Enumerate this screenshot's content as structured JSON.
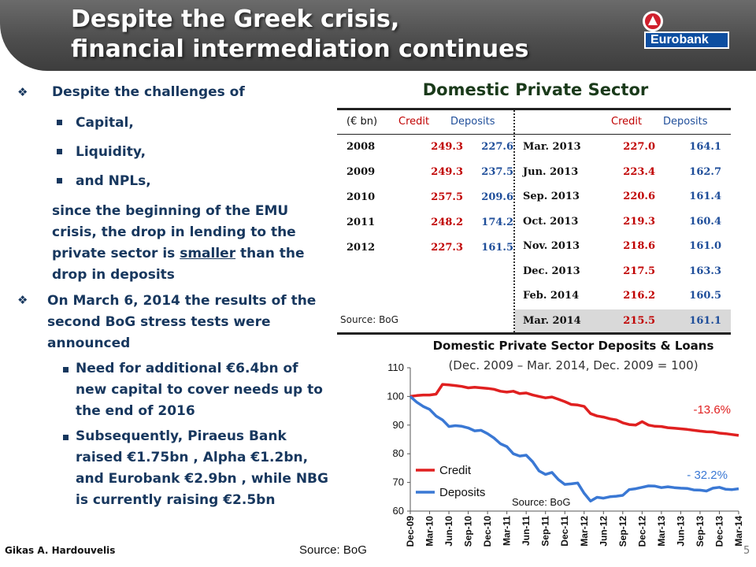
{
  "header": {
    "title_line1": "Despite the Greek crisis,",
    "title_line2": "financial intermediation continues",
    "logo_text": "Eurobank"
  },
  "left": {
    "bullet1": "Despite the challenges of",
    "sub1": "Capital,",
    "sub2": "Liquidity,",
    "sub3": "and NPLs,",
    "para_pre": "since the beginning of the EMU crisis, the drop in lending to the private sector is",
    "para_u": "smaller",
    "para_post": "than the drop in deposits",
    "bullet2": "On March 6, 2014 the results of the second BoG stress tests were announced",
    "sub4": "Need for additional  €6.4bn of new capital to cover needs up to the end of 2016",
    "sub5": "Subsequently,  Piraeus Bank raised €1.75bn , Alpha €1.2bn, and Eurobank  €2.9bn , while NBG is currently raising €2.5bn"
  },
  "table": {
    "title": "Domestic Private Sector",
    "headers": [
      "(€ bn)",
      "Credit",
      "Deposits",
      "Credit",
      "Deposits"
    ],
    "left_rows": [
      {
        "label": "2008",
        "credit": "249.3",
        "deposits": "227.6"
      },
      {
        "label": "2009",
        "credit": "249.3",
        "deposits": "237.5"
      },
      {
        "label": "2010",
        "credit": "257.5",
        "deposits": "209.6"
      },
      {
        "label": "2011",
        "credit": "248.2",
        "deposits": "174.2"
      },
      {
        "label": "2012",
        "credit": "227.3",
        "deposits": "161.5"
      }
    ],
    "right_rows": [
      {
        "label": "Mar. 2013",
        "credit": "227.0",
        "deposits": "164.1"
      },
      {
        "label": "Jun. 2013",
        "credit": "223.4",
        "deposits": "162.7"
      },
      {
        "label": "Sep. 2013",
        "credit": "220.6",
        "deposits": "161.4"
      },
      {
        "label": "Oct. 2013",
        "credit": "219.3",
        "deposits": "160.4"
      },
      {
        "label": "Nov. 2013",
        "credit": "218.6",
        "deposits": "161.0"
      },
      {
        "label": "Dec. 2013",
        "credit": "217.5",
        "deposits": "163.3"
      },
      {
        "label": "Feb. 2014",
        "credit": "216.2",
        "deposits": "160.5"
      },
      {
        "label": "Mar. 2014",
        "credit": "215.5",
        "deposits": "161.1"
      }
    ],
    "source": "Source: BoG"
  },
  "chart_data": {
    "type": "line",
    "title": "Domestic Private Sector Deposits  & Loans",
    "subtitle": "(Dec. 2009 – Mar. 2014, Dec. 2009 = 100)",
    "ylim": [
      60,
      110
    ],
    "yticks": [
      60,
      70,
      80,
      90,
      100,
      110
    ],
    "xticks": [
      "Dec-09",
      "Mar-10",
      "Jun-10",
      "Sep-10",
      "Dec-10",
      "Mar-11",
      "Jun-11",
      "Sep-11",
      "Dec-11",
      "Mar-12",
      "Jun-12",
      "Sep-12",
      "Dec-12",
      "Mar-13",
      "Jun-13",
      "Sep-13",
      "Dec-13",
      "Mar-14"
    ],
    "n_points": 52,
    "series": [
      {
        "name": "Credit",
        "color": "#e02020",
        "values": [
          100,
          100.3,
          100.5,
          100.5,
          100.8,
          104.2,
          104,
          103.8,
          103.5,
          103,
          103.2,
          103,
          102.8,
          102.5,
          101.8,
          101.5,
          101.8,
          101,
          101.2,
          100.5,
          100,
          99.5,
          99.8,
          99,
          98.2,
          97.2,
          97,
          96.5,
          94,
          93.2,
          92.8,
          92.2,
          91.8,
          90.8,
          90.2,
          90,
          91.2,
          90,
          89.6,
          89.5,
          89.1,
          88.9,
          88.7,
          88.5,
          88.2,
          87.9,
          87.7,
          87.6,
          87.2,
          87,
          86.7,
          86.4
        ],
        "end_label": "-13.6%"
      },
      {
        "name": "Deposits",
        "color": "#3a78d4",
        "values": [
          100,
          98,
          96.5,
          95.5,
          93.2,
          91.8,
          89.5,
          89.8,
          89.6,
          89,
          88,
          88.2,
          87,
          85.5,
          83.5,
          82.5,
          80,
          79.2,
          79.5,
          77.2,
          74,
          72.8,
          73.5,
          71,
          69.3,
          69.5,
          69.8,
          66.2,
          63.5,
          64.8,
          64.5,
          65,
          65.2,
          65.5,
          67.5,
          67.8,
          68.3,
          68.8,
          68.7,
          68.2,
          68.5,
          68.2,
          68,
          67.9,
          67.4,
          67.3,
          67,
          68,
          68.3,
          67.6,
          67.5,
          67.8
        ],
        "end_label": "- 32.2%"
      }
    ],
    "legend": [
      "Credit",
      "Deposits"
    ],
    "source": "Source: BoG"
  },
  "footer": {
    "author": "Gikas A. Hardouvelis",
    "source": "Source: BoG",
    "page": "5"
  }
}
